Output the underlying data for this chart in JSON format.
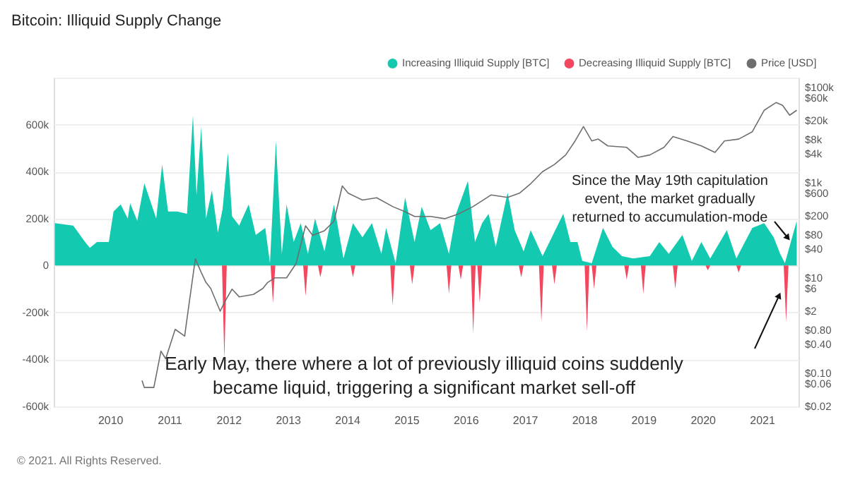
{
  "chart_data": {
    "type": "area",
    "title": "Bitcoin: Illiquid Supply Change",
    "xlim": [
      2009.05,
      2021.62
    ],
    "xticks": [
      2010,
      2011,
      2012,
      2013,
      2014,
      2015,
      2016,
      2017,
      2018,
      2019,
      2020,
      2021
    ],
    "ylim": [
      -600000,
      800000
    ],
    "yticks": [
      {
        "value": -600000,
        "label": "-600k"
      },
      {
        "value": -400000,
        "label": "-400k"
      },
      {
        "value": -200000,
        "label": "-200k"
      },
      {
        "value": 0,
        "label": "0"
      },
      {
        "value": 200000,
        "label": "200k"
      },
      {
        "value": 400000,
        "label": "400k"
      },
      {
        "value": 600000,
        "label": "600k"
      },
      {
        "value": 800000,
        "label": null
      }
    ],
    "y2lim": [
      0.02,
      160000
    ],
    "y2ticks": [
      {
        "value": 100000,
        "label": "$100k"
      },
      {
        "value": 60000,
        "label": "$60k"
      },
      {
        "value": 20000,
        "label": "$20k"
      },
      {
        "value": 8000,
        "label": "$8k"
      },
      {
        "value": 4000,
        "label": "$4k"
      },
      {
        "value": 1000,
        "label": "$1k"
      },
      {
        "value": 600,
        "label": "$600"
      },
      {
        "value": 200,
        "label": "$200"
      },
      {
        "value": 80,
        "label": "$80"
      },
      {
        "value": 40,
        "label": "$40"
      },
      {
        "value": 10,
        "label": "$10"
      },
      {
        "value": 6,
        "label": "$6"
      },
      {
        "value": 2,
        "label": "$2"
      },
      {
        "value": 0.8,
        "label": "$0.80"
      },
      {
        "value": 0.4,
        "label": "$0.40"
      },
      {
        "value": 0.1,
        "label": "$0.10"
      },
      {
        "value": 0.06,
        "label": "$0.06"
      },
      {
        "value": 0.02,
        "label": "$0.02"
      }
    ],
    "log": "y2",
    "grid": "y",
    "legend": "top right",
    "series": [
      {
        "name": "Increasing Illiquid Supply [BTC]",
        "color": "#13c9b0",
        "x": [
          2009.07,
          2009.38,
          2009.58,
          2009.66,
          2009.78,
          2009.98,
          2010.06,
          2010.18,
          2010.3,
          2010.34,
          2010.46,
          2010.58,
          2010.7,
          2010.78,
          2010.88,
          2010.98,
          2011.14,
          2011.3,
          2011.4,
          2011.46,
          2011.54,
          2011.62,
          2011.72,
          2011.82,
          2011.9,
          2011.99,
          2012.06,
          2012.18,
          2012.34,
          2012.46,
          2012.62,
          2012.7,
          2012.8,
          2012.9,
          2012.98,
          2013.1,
          2013.22,
          2013.34,
          2013.46,
          2013.62,
          2013.78,
          2013.94,
          2014.1,
          2014.26,
          2014.42,
          2014.58,
          2014.66,
          2014.82,
          2014.98,
          2015.14,
          2015.26,
          2015.41,
          2015.57,
          2015.72,
          2015.84,
          2016.04,
          2016.16,
          2016.28,
          2016.39,
          2016.51,
          2016.71,
          2016.83,
          2016.98,
          2017.1,
          2017.3,
          2017.65,
          2017.77,
          2017.89,
          2017.97,
          2018.13,
          2018.32,
          2018.48,
          2018.64,
          2018.83,
          2019.11,
          2019.27,
          2019.43,
          2019.66,
          2019.82,
          2019.98,
          2020.13,
          2020.41,
          2020.57,
          2020.84,
          2021.04,
          2021.2,
          2021.31,
          2021.39,
          2021.59
        ],
        "values": [
          180000,
          170000,
          100000,
          75000,
          100000,
          100000,
          230000,
          260000,
          200000,
          265000,
          190000,
          350000,
          260000,
          200000,
          430000,
          230000,
          230000,
          220000,
          640000,
          300000,
          590000,
          200000,
          320000,
          140000,
          240000,
          480000,
          210000,
          170000,
          260000,
          130000,
          160000,
          10000,
          530000,
          50000,
          260000,
          100000,
          180000,
          50000,
          200000,
          60000,
          260000,
          30000,
          180000,
          120000,
          180000,
          50000,
          160000,
          10000,
          290000,
          100000,
          250000,
          150000,
          180000,
          50000,
          220000,
          360000,
          100000,
          180000,
          220000,
          80000,
          310000,
          150000,
          60000,
          150000,
          40000,
          220000,
          100000,
          100000,
          20000,
          10000,
          160000,
          80000,
          40000,
          30000,
          40000,
          100000,
          50000,
          130000,
          20000,
          100000,
          30000,
          150000,
          30000,
          160000,
          180000,
          120000,
          50000,
          10000,
          190000
        ]
      },
      {
        "name": "Decreasing Illiquid Supply [BTC]",
        "color": "#f2475f",
        "x": [
          2009.07,
          2011.89,
          2011.93,
          2011.97,
          2012.71,
          2012.75,
          2012.79,
          2013.26,
          2013.3,
          2013.34,
          2013.51,
          2013.55,
          2013.59,
          2014.06,
          2014.1,
          2014.14,
          2014.73,
          2014.77,
          2014.81,
          2015.06,
          2015.1,
          2015.14,
          2015.68,
          2015.72,
          2015.76,
          2015.88,
          2015.92,
          2015.96,
          2016.09,
          2016.13,
          2016.17,
          2016.2,
          2016.24,
          2016.28,
          2016.9,
          2016.94,
          2016.98,
          2017.24,
          2017.28,
          2017.32,
          2017.46,
          2017.5,
          2017.54,
          2018.01,
          2018.05,
          2018.09,
          2018.13,
          2018.17,
          2018.21,
          2018.68,
          2018.72,
          2018.76,
          2018.96,
          2019.0,
          2019.04,
          2019.5,
          2019.54,
          2019.58,
          2020.05,
          2020.09,
          2020.13,
          2020.57,
          2020.61,
          2020.65,
          2021.37,
          2021.41,
          2021.45,
          2021.59
        ],
        "values": [
          0,
          0,
          -400000,
          0,
          0,
          -160000,
          0,
          0,
          -130000,
          0,
          0,
          -50000,
          0,
          0,
          -50000,
          0,
          0,
          -170000,
          0,
          0,
          -80000,
          0,
          0,
          -120000,
          0,
          0,
          -60000,
          0,
          0,
          -290000,
          0,
          0,
          -160000,
          0,
          0,
          -50000,
          0,
          0,
          -240000,
          0,
          0,
          -80000,
          0,
          0,
          -280000,
          0,
          0,
          -100000,
          0,
          0,
          -60000,
          0,
          0,
          -120000,
          0,
          0,
          -100000,
          0,
          0,
          -20000,
          0,
          0,
          -30000,
          0,
          0,
          -240000,
          0,
          0
        ]
      },
      {
        "name": "Price [USD]",
        "type": "line",
        "axis": "y2",
        "color": "#6e6e6e",
        "x": [
          2010.54,
          2010.58,
          2010.74,
          2010.86,
          2010.94,
          2011.1,
          2011.26,
          2011.34,
          2011.44,
          2011.54,
          2011.62,
          2011.7,
          2011.86,
          2011.94,
          2012.06,
          2012.18,
          2012.42,
          2012.58,
          2012.66,
          2012.78,
          2012.98,
          2013.14,
          2013.3,
          2013.42,
          2013.62,
          2013.78,
          2013.92,
          2014.02,
          2014.26,
          2014.5,
          2014.78,
          2014.98,
          2015.14,
          2015.41,
          2015.65,
          2015.88,
          2016.12,
          2016.43,
          2016.71,
          2016.91,
          2017.1,
          2017.3,
          2017.5,
          2017.69,
          2017.85,
          2017.99,
          2018.13,
          2018.24,
          2018.4,
          2018.72,
          2018.91,
          2019.11,
          2019.35,
          2019.5,
          2019.74,
          2019.98,
          2020.21,
          2020.37,
          2020.61,
          2020.84,
          2021.04,
          2021.24,
          2021.35,
          2021.47,
          2021.59
        ],
        "values": [
          0.07,
          0.05,
          0.05,
          0.29,
          0.2,
          0.83,
          0.6,
          3.2,
          25,
          13,
          8,
          6,
          2,
          3.2,
          5.8,
          4,
          4.5,
          6,
          8,
          10,
          10,
          20,
          124,
          78,
          98,
          155,
          850,
          600,
          430,
          480,
          310,
          245,
          195,
          195,
          175,
          220,
          310,
          550,
          490,
          600,
          950,
          1700,
          2400,
          3800,
          7500,
          15000,
          7500,
          8200,
          5900,
          5500,
          3400,
          3800,
          5500,
          9300,
          7500,
          5900,
          4300,
          7500,
          8200,
          11700,
          33000,
          48000,
          42000,
          26000,
          33000
        ]
      }
    ],
    "annotations": [
      "Since the May 19th capitulation\nevent, the market gradually\nreturned to accumulation-mode",
      "Early May, there where a lot of previously illiquid coins suddenly\nbecame liquid, triggering a significant market sell-off",
      "© 2021. All Rights Reserved."
    ]
  }
}
